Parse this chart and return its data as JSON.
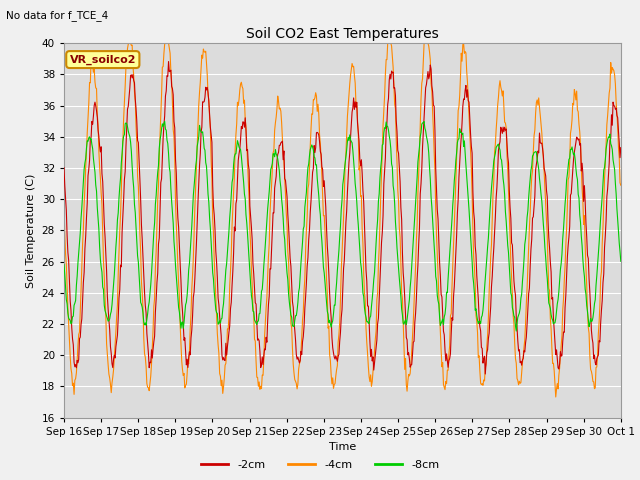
{
  "title": "Soil CO2 East Temperatures",
  "subtitle": "No data for f_TCE_4",
  "ylabel": "Soil Temperature (C)",
  "xlabel": "Time",
  "ylim": [
    16,
    40
  ],
  "yticks": [
    16,
    18,
    20,
    22,
    24,
    26,
    28,
    30,
    32,
    34,
    36,
    38,
    40
  ],
  "xtick_labels": [
    "Sep 16",
    "Sep 17",
    "Sep 18",
    "Sep 19",
    "Sep 20",
    "Sep 21",
    "Sep 22",
    "Sep 23",
    "Sep 24",
    "Sep 25",
    "Sep 26",
    "Sep 27",
    "Sep 28",
    "Sep 29",
    "Sep 30",
    "Oct 1"
  ],
  "color_2cm": "#cc0000",
  "color_4cm": "#ff8800",
  "color_8cm": "#00cc00",
  "legend_label_2cm": "-2cm",
  "legend_label_4cm": "-4cm",
  "legend_label_8cm": "-8cm",
  "annotation_box_label": "VR_soilco2",
  "annotation_box_color": "#ffff99",
  "annotation_box_edgecolor": "#cc8800",
  "plot_bg_color": "#dcdcdc",
  "fig_bg_color": "#f0f0f0",
  "grid_color": "#ffffff",
  "n_days": 15,
  "points_per_day": 48,
  "min_2cm": 19.5,
  "max_2cm_base": 36.0,
  "min_4cm": 18.0,
  "max_4cm_base": 38.5,
  "min_8cm": 22.0,
  "max_8cm_base": 34.0,
  "phase_4cm": 1.5,
  "phase_8cm": 3.5
}
